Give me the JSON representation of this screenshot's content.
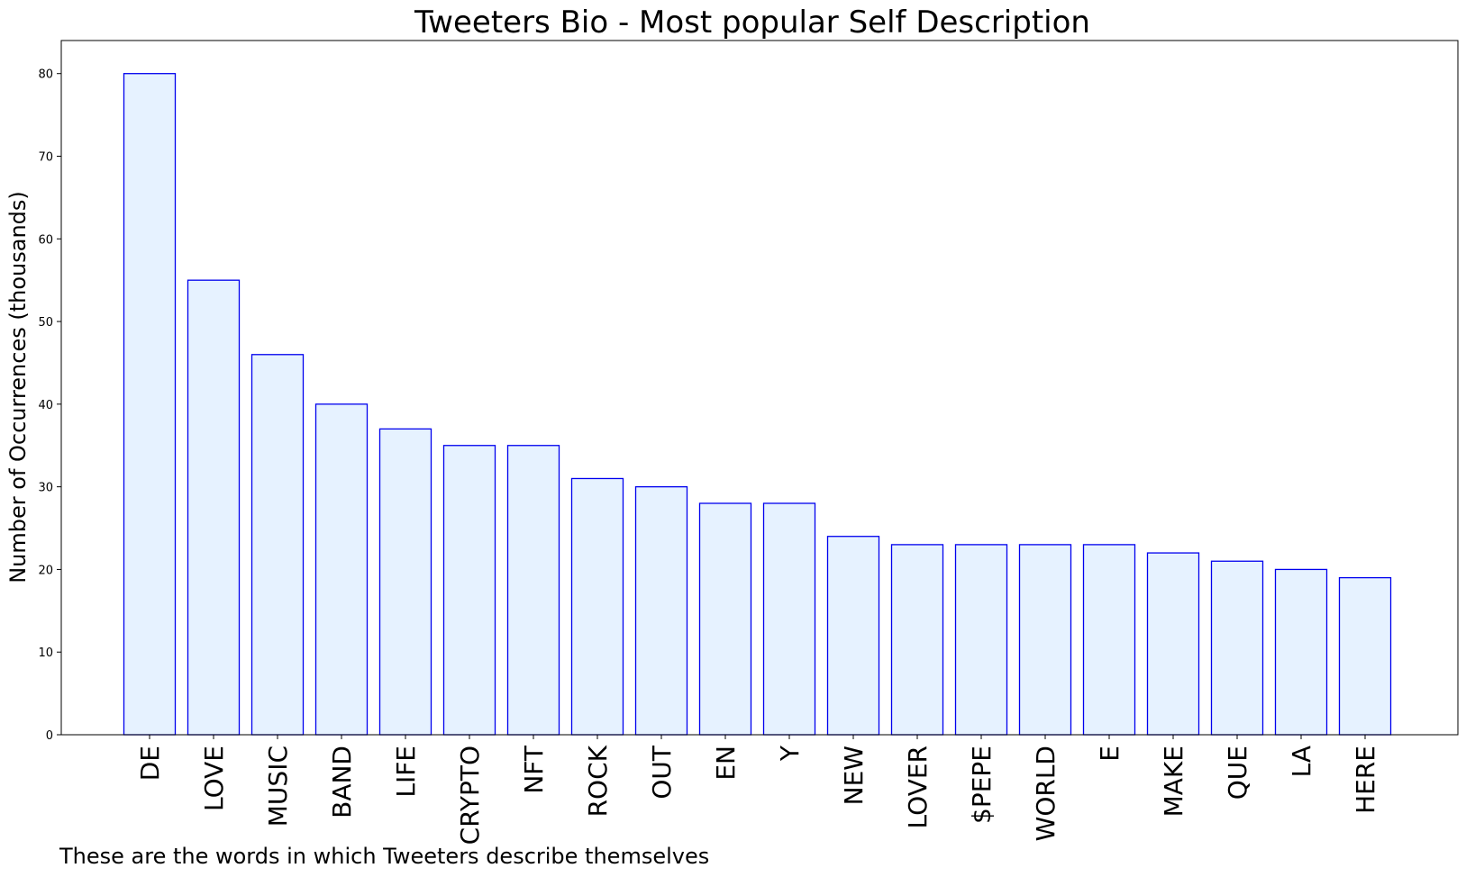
{
  "chart_data": {
    "type": "bar",
    "title": "Tweeters Bio - Most popular Self Description",
    "xlabel": "",
    "ylabel": "Number of Occurrences (thousands)",
    "caption": "These are the words in which Tweeters describe themselves",
    "categories": [
      "DE",
      "LOVE",
      "MUSIC",
      "BAND",
      "LIFE",
      "CRYPTO",
      "NFT",
      "ROCK",
      "OUT",
      "EN",
      "Y",
      "NEW",
      "LOVER",
      "$PEPE",
      "WORLD",
      "E",
      "MAKE",
      "QUE",
      "LA",
      "HERE"
    ],
    "values": [
      80,
      55,
      46,
      40,
      37,
      35,
      35,
      31,
      30,
      28,
      28,
      24,
      23,
      23,
      23,
      23,
      22,
      21,
      20,
      19
    ],
    "ylim": [
      0,
      84
    ],
    "yticks": [
      0,
      10,
      20,
      30,
      40,
      50,
      60,
      70,
      80
    ],
    "grid": false,
    "colors": {
      "bar_fill": "#e6f2ff",
      "bar_edge": "#0000ee"
    }
  }
}
